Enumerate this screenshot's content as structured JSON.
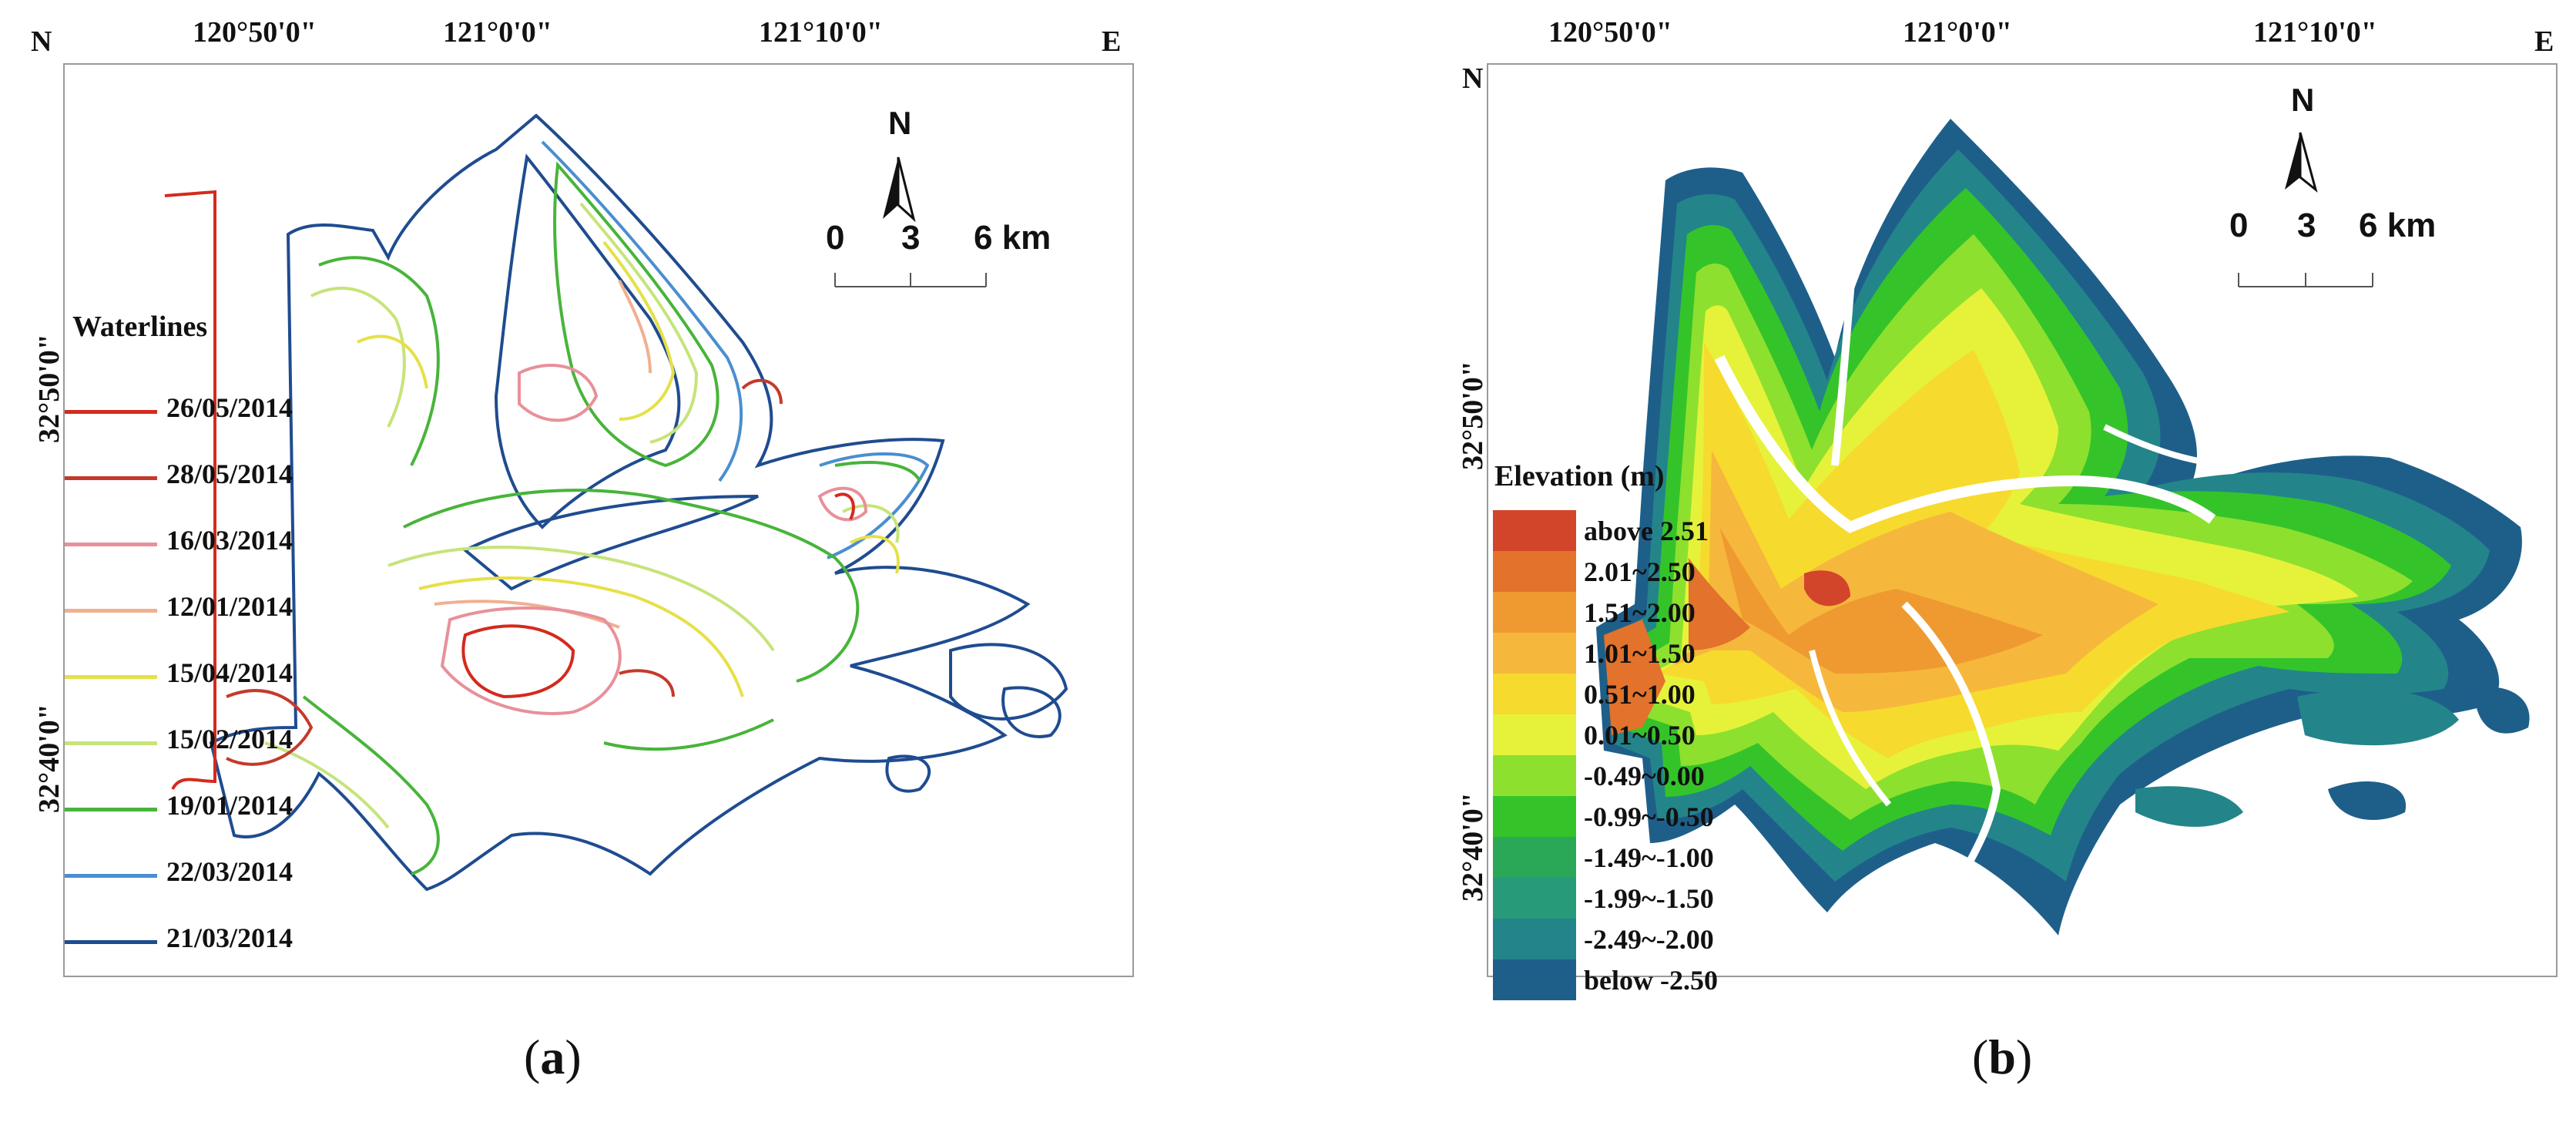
{
  "panel_a": {
    "corner_north": "N",
    "corner_east": "E",
    "lon_labels": [
      "120°50'0\"",
      "121°0'0\"",
      "121°10'0\""
    ],
    "lat_labels": [
      "32°50'0\"",
      "32°40'0\""
    ],
    "legend_title": "Waterlines",
    "legend": [
      {
        "label": "26/05/2014",
        "color": "#d42a1e"
      },
      {
        "label": "28/05/2014",
        "color": "#c43a2a"
      },
      {
        "label": "16/03/2014",
        "color": "#e8909a"
      },
      {
        "label": "12/01/2014",
        "color": "#f0b090"
      },
      {
        "label": "15/04/2014",
        "color": "#e6e048"
      },
      {
        "label": "15/02/2014",
        "color": "#c6e47a"
      },
      {
        "label": "19/01/2014",
        "color": "#48b43a"
      },
      {
        "label": "22/03/2014",
        "color": "#4a8ed0"
      },
      {
        "label": "21/03/2014",
        "color": "#1f4c90"
      }
    ],
    "north_arrow_label": "N",
    "scale_labels": [
      "0",
      "3",
      "6 km"
    ],
    "caption_open": "(",
    "caption_letter": "a",
    "caption_close": ")"
  },
  "panel_b": {
    "corner_north": "N",
    "corner_east": "E",
    "lon_labels": [
      "120°50'0\"",
      "121°0'0\"",
      "121°10'0\""
    ],
    "lat_labels": [
      "32°50'0\"",
      "32°40'0\""
    ],
    "legend_title": "Elevation (m)",
    "legend": [
      {
        "label": "above 2.51",
        "color": "#d2452a"
      },
      {
        "label": "2.01~2.50",
        "color": "#e2722c"
      },
      {
        "label": "1.51~2.00",
        "color": "#ef9a30"
      },
      {
        "label": "1.01~1.50",
        "color": "#f5b83c"
      },
      {
        "label": "0.51~1.00",
        "color": "#f7da2e"
      },
      {
        "label": "0.01~0.50",
        "color": "#e6f23a"
      },
      {
        "label": "-0.49~0.00",
        "color": "#8ee02e"
      },
      {
        "label": "-0.99~-0.50",
        "color": "#34c42a"
      },
      {
        "label": "-1.49~-1.00",
        "color": "#2aa858"
      },
      {
        "label": "-1.99~-1.50",
        "color": "#279a7a"
      },
      {
        "label": "-2.49~-2.00",
        "color": "#23858a"
      },
      {
        "label": "below -2.50",
        "color": "#1e5f8a"
      }
    ],
    "north_arrow_label": "N",
    "scale_labels": [
      "0",
      "3",
      "6 km"
    ],
    "caption_open": "(",
    "caption_letter": "b",
    "caption_close": ")"
  }
}
